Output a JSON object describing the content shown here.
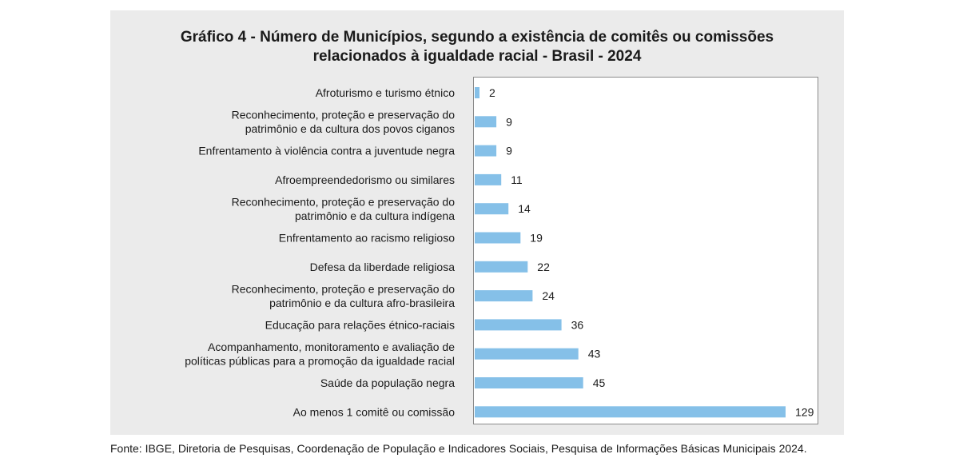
{
  "chart_data": {
    "type": "bar",
    "orientation": "horizontal",
    "title": "Gráfico 4 - Número de Municípios, segundo a existência de comitês ou comissões relacionados à igualdade racial - Brasil - 2024",
    "title_lines": [
      "Gráfico 4 - Número de Municípios, segundo a existência de comitês ou comissões",
      "relacionados à igualdade racial - Brasil - 2024"
    ],
    "categories": [
      [
        "Afroturismo e turismo étnico"
      ],
      [
        "Reconhecimento, proteção e preservação do",
        "patrimônio e da cultura dos povos ciganos"
      ],
      [
        "Enfrentamento à violência contra a  juventude negra"
      ],
      [
        "Afroempreendedorismo ou similares"
      ],
      [
        "Reconhecimento, proteção e preservação do",
        "patrimônio e da cultura indígena"
      ],
      [
        "Enfrentamento ao racismo religioso"
      ],
      [
        "Defesa da liberdade religiosa"
      ],
      [
        "Reconhecimento, proteção e preservação do",
        "patrimônio e da cultura afro-brasileira"
      ],
      [
        "Educação para relações étnico-raciais"
      ],
      [
        "Acompanhamento, monitoramento e avaliação de",
        "políticas públicas para a promoção da igualdade racial"
      ],
      [
        "Saúde da população negra"
      ],
      [
        "Ao menos 1 comitê ou comissão"
      ]
    ],
    "values": [
      2,
      9,
      9,
      11,
      14,
      19,
      22,
      24,
      36,
      43,
      45,
      129
    ],
    "xlim": [
      0,
      129
    ],
    "bar_color": "#85c0e8",
    "grid": false,
    "legend": "none",
    "xlabel": "",
    "ylabel": ""
  },
  "source": "Fonte: IBGE, Diretoria de Pesquisas, Coordenação de População e Indicadores Sociais, Pesquisa de Informações Básicas Municipais 2024.",
  "colors": {
    "panel_background": "#ebebeb",
    "plot_background": "#ffffff",
    "bar": "#85c0e8",
    "text": "#1a1a1a"
  }
}
